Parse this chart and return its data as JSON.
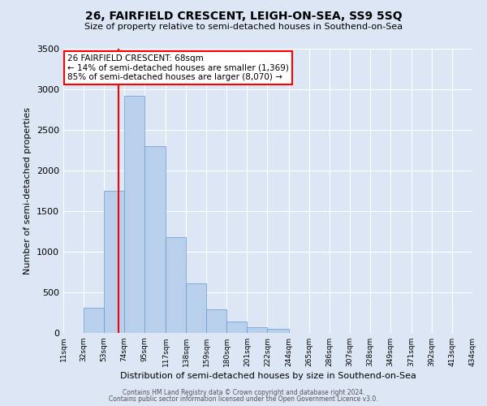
{
  "title": "26, FAIRFIELD CRESCENT, LEIGH-ON-SEA, SS9 5SQ",
  "subtitle": "Size of property relative to semi-detached houses in Southend-on-Sea",
  "xlabel": "Distribution of semi-detached houses by size in Southend-on-Sea",
  "ylabel": "Number of semi-detached properties",
  "bin_edges": [
    11,
    32,
    53,
    74,
    95,
    117,
    138,
    159,
    180,
    201,
    222,
    244,
    265,
    286,
    307,
    328,
    349,
    371,
    392,
    413,
    434
  ],
  "bar_heights": [
    5,
    315,
    1750,
    2920,
    2300,
    1180,
    610,
    290,
    145,
    75,
    55,
    5,
    0,
    0,
    0,
    0,
    0,
    0,
    0,
    0
  ],
  "bar_color": "#b8d0eb",
  "bar_edge_color": "#6699cc",
  "property_size": 68,
  "vline_color": "red",
  "annotation_line1": "26 FAIRFIELD CRESCENT: 68sqm",
  "annotation_line2": "← 14% of semi-detached houses are smaller (1,369)",
  "annotation_line3": "85% of semi-detached houses are larger (8,070) →",
  "annotation_box_color": "white",
  "annotation_box_edge_color": "red",
  "ylim": [
    0,
    3500
  ],
  "background_color": "#dce6f5",
  "grid_color": "white",
  "yticks": [
    0,
    500,
    1000,
    1500,
    2000,
    2500,
    3000,
    3500
  ],
  "footnote1": "Contains HM Land Registry data © Crown copyright and database right 2024.",
  "footnote2": "Contains public sector information licensed under the Open Government Licence v3.0."
}
